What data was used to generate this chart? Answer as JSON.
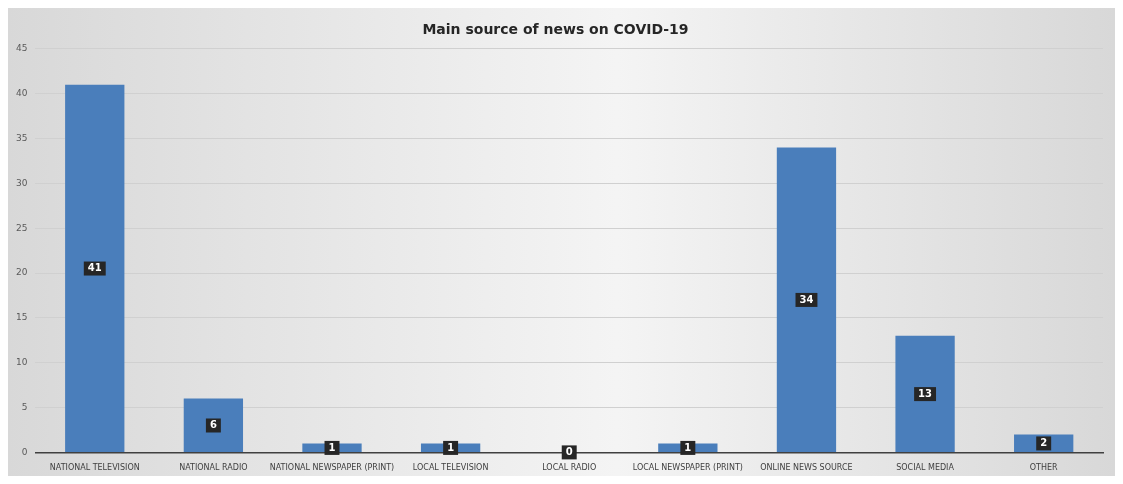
{
  "chart_data": {
    "type": "bar",
    "title": "Main source of news on COVID-19",
    "categories": [
      "NATIONAL TELEVISION",
      "NATIONAL RADIO",
      "NATIONAL NEWSPAPER (PRINT)",
      "LOCAL TELEVISION",
      "LOCAL RADIO",
      "LOCAL NEWSPAPER (PRINT)",
      "ONLINE NEWS SOURCE",
      "SOCIAL MEDIA",
      "OTHER"
    ],
    "values": [
      41,
      6,
      1,
      1,
      0,
      1,
      34,
      13,
      2
    ],
    "color": "#4a7ebb",
    "ylim": [
      0,
      45
    ],
    "yticks": [
      0,
      5,
      10,
      15,
      20,
      25,
      30,
      35,
      40,
      45
    ],
    "grid": "y",
    "data_labels": true
  }
}
